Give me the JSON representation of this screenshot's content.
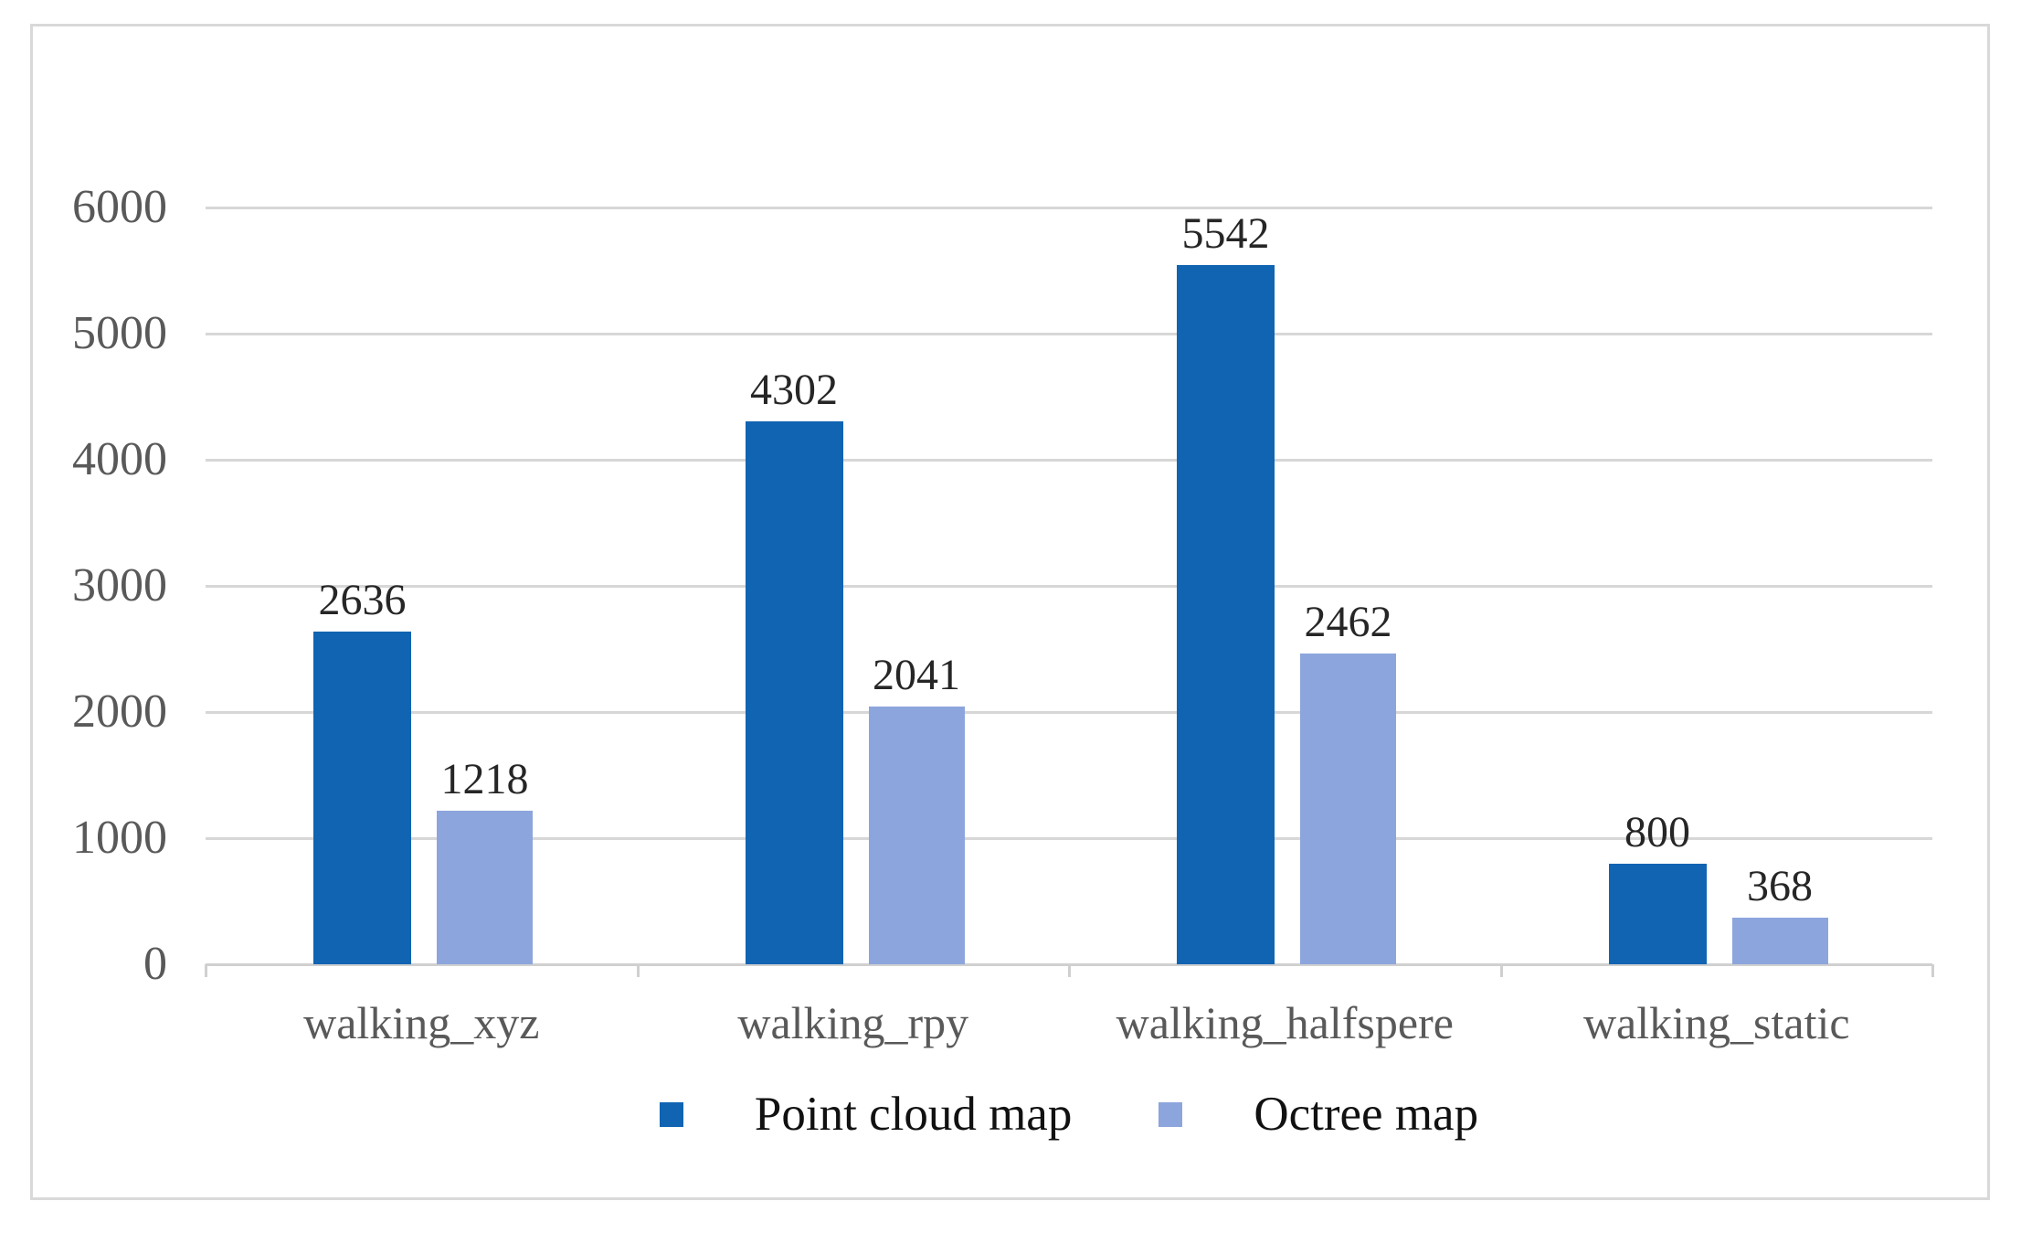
{
  "chart_data": {
    "type": "bar",
    "title": "",
    "xlabel": "",
    "ylabel": "",
    "categories": [
      "walking_xyz",
      "walking_rpy",
      "walking_halfspere",
      "walking_static"
    ],
    "series": [
      {
        "name": "Point cloud map",
        "color": "#1164B2",
        "values": [
          2636,
          4302,
          5542,
          800
        ]
      },
      {
        "name": "Octree map",
        "color": "#8CA5DC",
        "values": [
          1218,
          2041,
          2462,
          368
        ]
      }
    ],
    "data_labels": [
      [
        "2636",
        "4302",
        "5542",
        "800"
      ],
      [
        "1218",
        "2041",
        "2462",
        "368"
      ]
    ],
    "ylim": [
      0,
      6000
    ],
    "y_ticks": [
      "0",
      "1000",
      "2000",
      "3000",
      "4000",
      "5000",
      "6000"
    ],
    "grid": "horizontal-gridlines-on",
    "legend_position": "bottom"
  },
  "colors": {
    "frame_border": "#d9d9d9",
    "gridline": "#d7d7d7",
    "axis_line": "#d0d0d0",
    "tick_label_text": "#595959",
    "category_label_text": "#595959",
    "data_label_text": "#262626",
    "legend_text": "#111111",
    "background": "#ffffff"
  }
}
